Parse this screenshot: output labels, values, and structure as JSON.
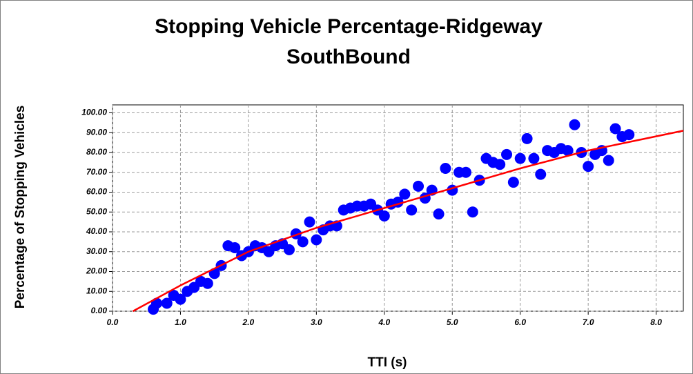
{
  "chart_data": {
    "type": "scatter",
    "title": [
      "Stopping Vehicle Percentage-Ridgeway",
      "SouthBound"
    ],
    "xlabel": "TTI (s)",
    "ylabel": "Percentage of Stopping Vehicles",
    "xlim": [
      0,
      8.4
    ],
    "ylim": [
      0,
      104
    ],
    "xticks": [
      {
        "value": 0,
        "label": "0.0"
      },
      {
        "value": 1,
        "label": "1.0"
      },
      {
        "value": 2,
        "label": "2.0"
      },
      {
        "value": 3,
        "label": "3.0"
      },
      {
        "value": 4,
        "label": "4.0"
      },
      {
        "value": 5,
        "label": "5.0"
      },
      {
        "value": 6,
        "label": "6.0"
      },
      {
        "value": 7,
        "label": "7.0"
      },
      {
        "value": 8,
        "label": "8.0"
      }
    ],
    "yticks": [
      {
        "value": 0,
        "label": "0.00"
      },
      {
        "value": 10,
        "label": "10.00"
      },
      {
        "value": 20,
        "label": "20.00"
      },
      {
        "value": 30,
        "label": "30.00"
      },
      {
        "value": 40,
        "label": "40.00"
      },
      {
        "value": 50,
        "label": "50.00"
      },
      {
        "value": 60,
        "label": "60.00"
      },
      {
        "value": 70,
        "label": "70.00"
      },
      {
        "value": 80,
        "label": "80.00"
      },
      {
        "value": 90,
        "label": "90.00"
      },
      {
        "value": 100,
        "label": "100.00"
      }
    ],
    "grid": true,
    "series": [
      {
        "color": "#0000ff",
        "x": [
          0.6,
          0.65,
          0.8,
          0.9,
          1.0,
          1.1,
          1.2,
          1.3,
          1.4,
          1.5,
          1.6,
          1.7,
          1.8,
          1.9,
          2.0,
          2.1,
          2.2,
          2.3,
          2.4,
          2.5,
          2.6,
          2.7,
          2.8,
          2.9,
          3.0,
          3.1,
          3.2,
          3.3,
          3.4,
          3.5,
          3.6,
          3.7,
          3.8,
          3.9,
          4.0,
          4.1,
          4.2,
          4.3,
          4.4,
          4.5,
          4.6,
          4.7,
          4.8,
          4.9,
          5.0,
          5.1,
          5.2,
          5.3,
          5.4,
          5.5,
          5.6,
          5.7,
          5.8,
          5.9,
          6.0,
          6.1,
          6.2,
          6.3,
          6.4,
          6.5,
          6.6,
          6.7,
          6.8,
          6.9,
          7.0,
          7.1,
          7.2,
          7.3,
          7.4,
          7.5,
          7.6
        ],
        "values": [
          1,
          4,
          4,
          8,
          6,
          10,
          12,
          15,
          14,
          19,
          23,
          33,
          32,
          28,
          30,
          33,
          32,
          30,
          33,
          34,
          31,
          39,
          35,
          45,
          36,
          41,
          43,
          43,
          51,
          52,
          53,
          53,
          54,
          51,
          48,
          54,
          55,
          59,
          51,
          63,
          57,
          61,
          49,
          72,
          61,
          70,
          70,
          50,
          66,
          77,
          75,
          74,
          79,
          65,
          77,
          87,
          77,
          69,
          81,
          80,
          82,
          81,
          94,
          80,
          73,
          79,
          81,
          76,
          92,
          88,
          89
        ]
      }
    ],
    "fit": {
      "color": "#ff0000",
      "x": [
        0.3,
        1,
        2,
        3,
        4,
        5,
        6,
        7,
        8.4
      ],
      "values": [
        0,
        13,
        30,
        42,
        52,
        62,
        72,
        81,
        91
      ]
    }
  }
}
